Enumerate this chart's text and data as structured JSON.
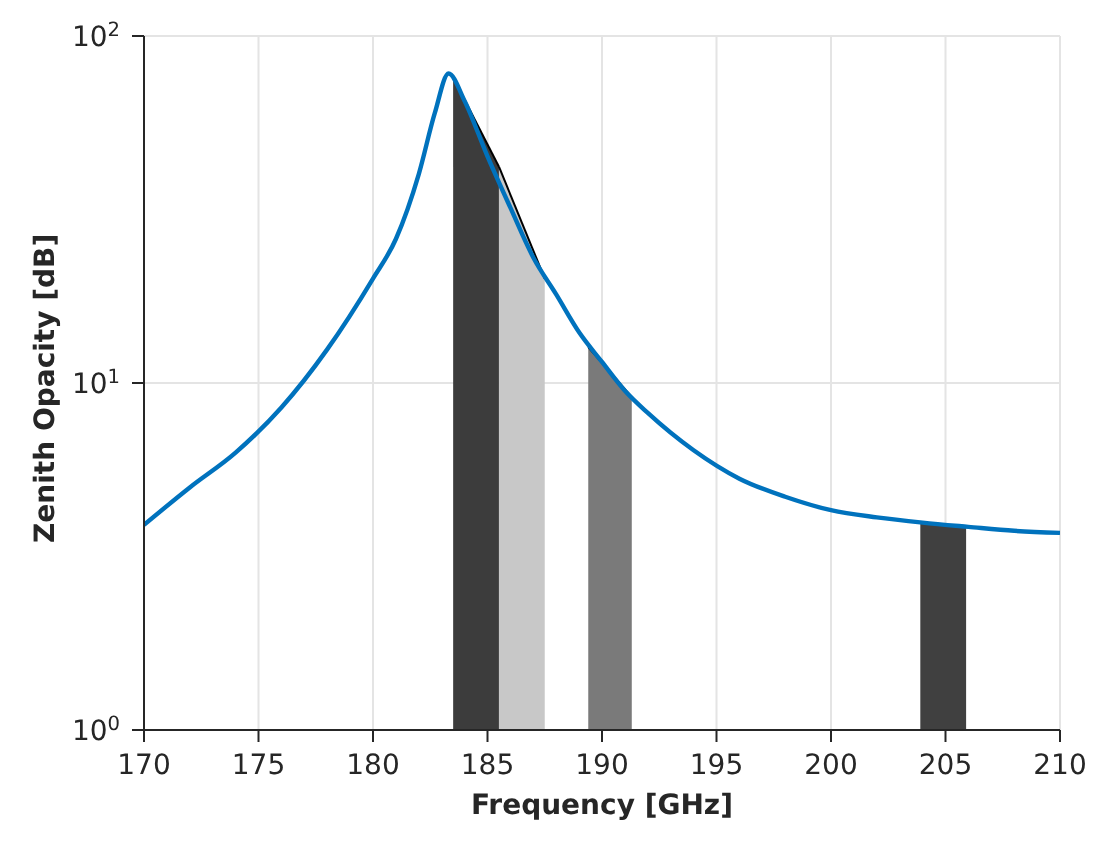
{
  "chart_data": {
    "type": "line",
    "xlabel": "Frequency [GHz]",
    "ylabel": "Zenith Opacity [dB]",
    "log": "y",
    "grid": true,
    "marker": "none",
    "line_style": "solid",
    "xlim": [
      170,
      210
    ],
    "xticks": [
      170,
      175,
      180,
      185,
      190,
      195,
      200,
      205,
      210
    ],
    "ylim": [
      1,
      100
    ],
    "yticks": [
      {
        "value": 1,
        "label": "10$^{0}$"
      },
      {
        "value": 10,
        "label": "10$^{1}$"
      },
      {
        "value": 100,
        "label": "10$^{2}$"
      }
    ],
    "series": [
      {
        "type": "area",
        "color": "#3c3c3c",
        "x": [
          183.5,
          185.5
        ],
        "values": [
          76,
          42
        ]
      },
      {
        "type": "area",
        "color": "#c8c8c8",
        "x": [
          185.5,
          187.5
        ],
        "values": [
          42,
          20
        ]
      },
      {
        "type": "area",
        "color": "#7a7a7a",
        "x": [
          189.4,
          191.3
        ],
        "values": [
          12.7,
          9.1
        ]
      },
      {
        "type": "area",
        "color": "#404040",
        "x": [
          203.9,
          205.9
        ],
        "values": [
          3.96,
          3.85
        ]
      },
      {
        "color": "#0072bd",
        "x": [
          170,
          172,
          174,
          176,
          178,
          180,
          181,
          182,
          182.7,
          183.3,
          184,
          185,
          186,
          187,
          188,
          189,
          190,
          191,
          192,
          194,
          196,
          198,
          200,
          202,
          204,
          206,
          208,
          210
        ],
        "values": [
          3.9,
          5.0,
          6.3,
          8.5,
          12.5,
          20,
          26,
          40,
          60,
          78,
          65,
          45,
          32,
          23,
          18,
          14,
          11.5,
          9.5,
          8.2,
          6.4,
          5.3,
          4.7,
          4.3,
          4.1,
          3.96,
          3.85,
          3.75,
          3.7
        ]
      }
    ]
  }
}
